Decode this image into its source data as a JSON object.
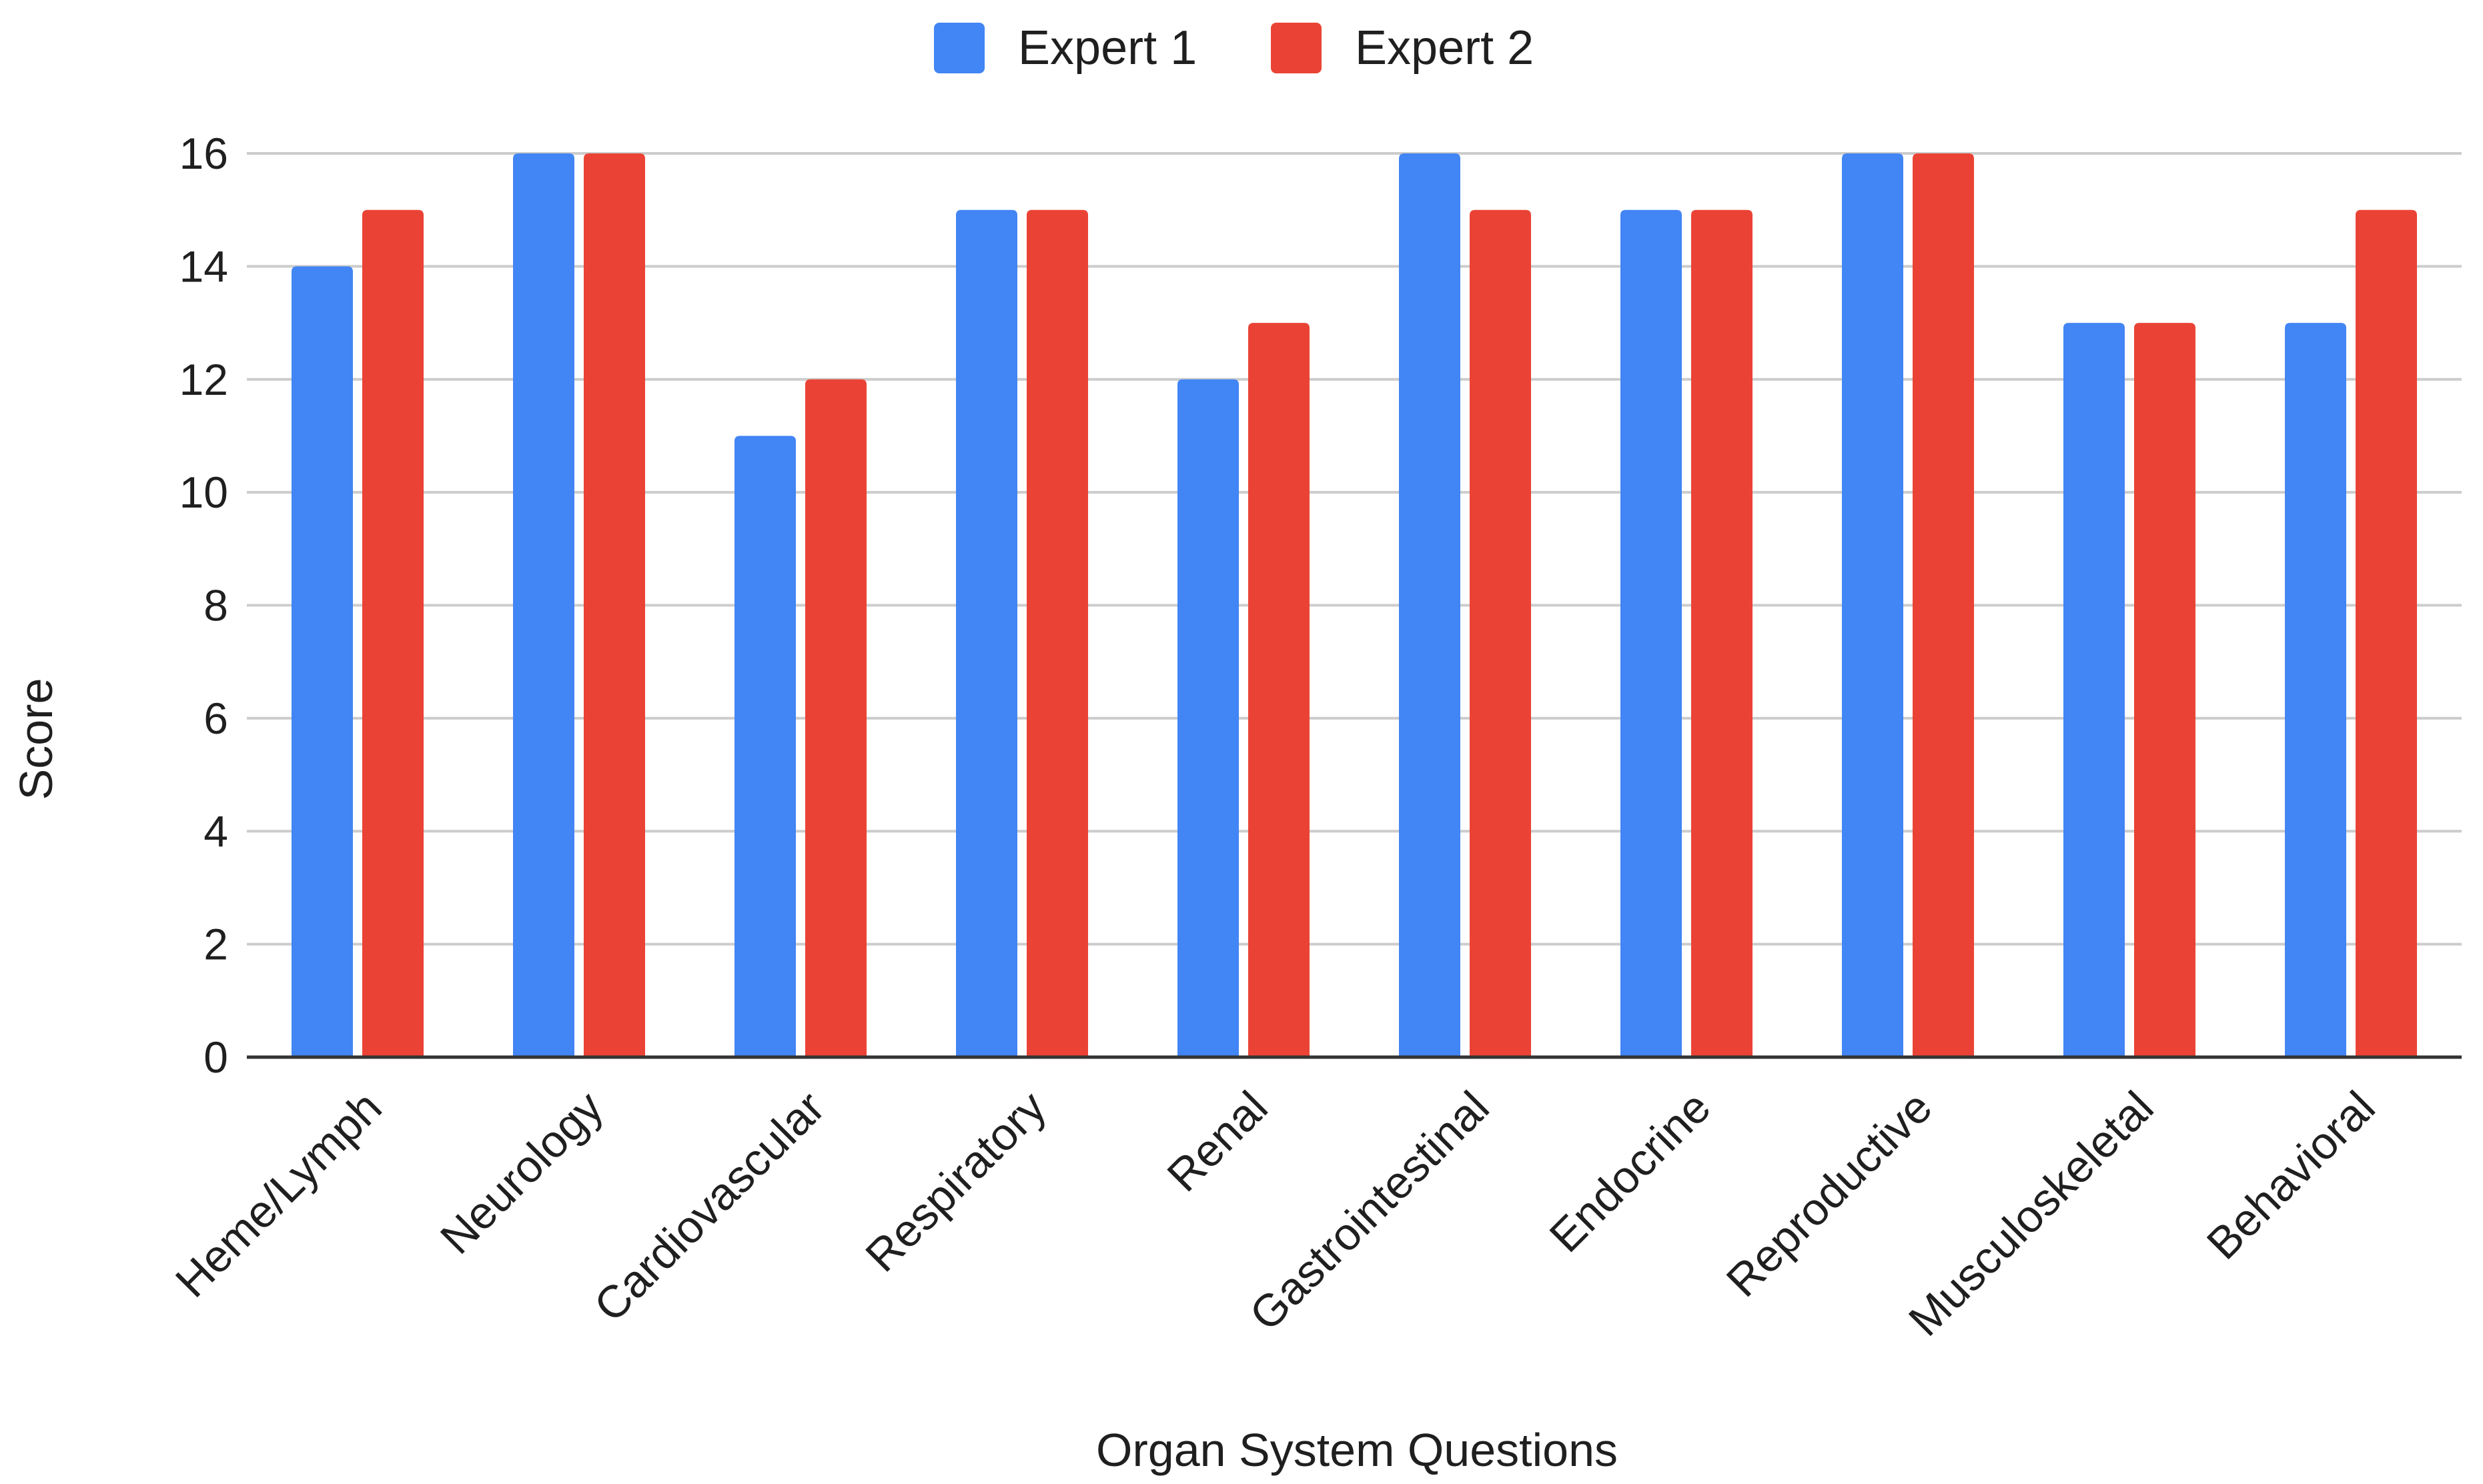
{
  "chart_data": {
    "type": "bar",
    "title": "",
    "xlabel": "Organ System Questions",
    "ylabel": "Score",
    "ylim": [
      0,
      16
    ],
    "yticks": [
      0,
      2,
      4,
      6,
      8,
      10,
      12,
      14,
      16
    ],
    "grid": true,
    "legend_position": "top-center",
    "categories": [
      "Heme/Lymph",
      "Neurology",
      "Cardiovascular",
      "Respiratory",
      "Renal",
      "Gastrointestinal",
      "Endocrine",
      "Reproductive",
      "Musculoskeletal",
      "Behavioral"
    ],
    "series": [
      {
        "name": "Expert 1",
        "color": "#4285F4",
        "values": [
          14,
          16,
          11,
          15,
          12,
          16,
          15,
          16,
          13,
          13
        ]
      },
      {
        "name": "Expert 2",
        "color": "#EA4335",
        "values": [
          15,
          16,
          12,
          15,
          13,
          15,
          15,
          16,
          13,
          15
        ]
      }
    ]
  }
}
